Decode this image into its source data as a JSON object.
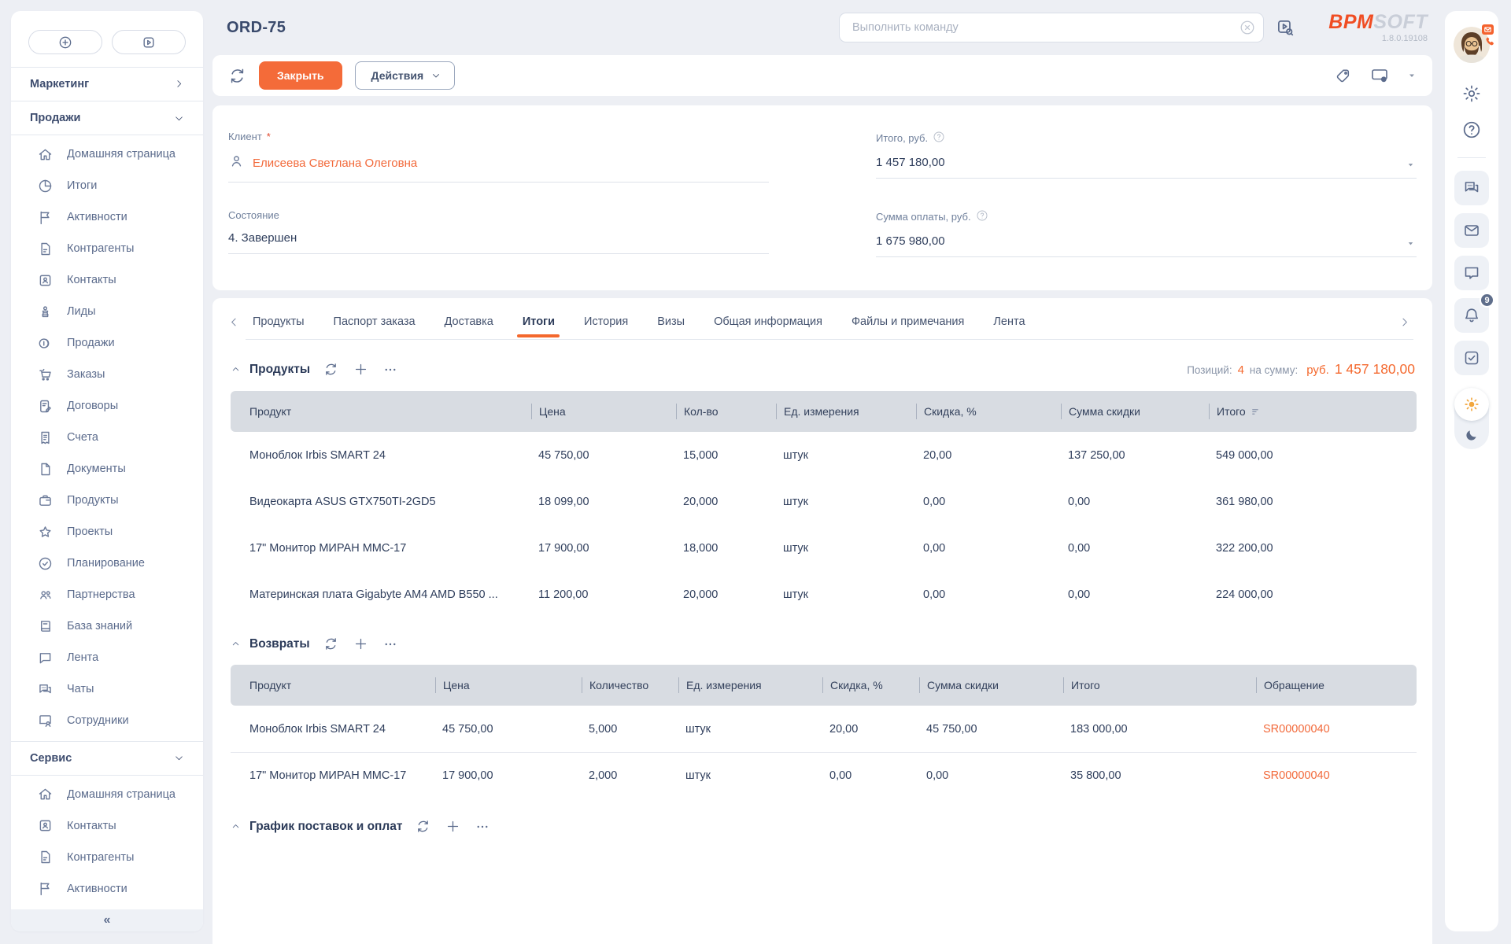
{
  "colors": {
    "accent": "#f4682d",
    "link": "#f2693a",
    "close_button": "#f46b39",
    "logo_orange": "#f04d23",
    "logo_gray": "#c9ced8",
    "table_header_bg": "#d8dce2",
    "badge_bg": "#5f6e8b"
  },
  "header": {
    "record_id": "ORD-75",
    "command_placeholder": "Выполнить команду",
    "logo": {
      "bpm": "BPM",
      "soft": "SOFT",
      "version": "1.8.0.19108"
    }
  },
  "toolbar": {
    "close_label": "Закрыть",
    "actions_label": "Действия"
  },
  "form": {
    "client": {
      "label": "Клиент",
      "required_mark": "*",
      "value": "Елисеева Светлана Олеговна"
    },
    "state": {
      "label": "Состояние",
      "value": "4. Завершен"
    },
    "total": {
      "label": "Итого, руб.",
      "value": "1 457 180,00"
    },
    "payment": {
      "label": "Сумма оплаты, руб.",
      "value": "1 675 980,00"
    }
  },
  "tabs": {
    "items": [
      {
        "label": "Продукты",
        "active": false
      },
      {
        "label": "Паспорт заказа",
        "active": false
      },
      {
        "label": "Доставка",
        "active": false
      },
      {
        "label": "Итоги",
        "active": true
      },
      {
        "label": "История",
        "active": false
      },
      {
        "label": "Визы",
        "active": false
      },
      {
        "label": "Общая информация",
        "active": false
      },
      {
        "label": "Файлы и примечания",
        "active": false
      },
      {
        "label": "Лента",
        "active": false
      }
    ]
  },
  "sidebar": {
    "sections": [
      {
        "label": "Маркетинг",
        "expanded": false,
        "items": []
      },
      {
        "label": "Продажи",
        "expanded": true,
        "items": [
          {
            "icon": "home-icon",
            "label": "Домашняя страница"
          },
          {
            "icon": "pie-icon",
            "label": "Итоги"
          },
          {
            "icon": "flag-icon",
            "label": "Активности"
          },
          {
            "icon": "account-doc-icon",
            "label": "Контрагенты"
          },
          {
            "icon": "contact-card-icon",
            "label": "Контакты"
          },
          {
            "icon": "lead-icon",
            "label": "Лиды"
          },
          {
            "icon": "sales-icon",
            "label": "Продажи"
          },
          {
            "icon": "cart-icon",
            "label": "Заказы"
          },
          {
            "icon": "contract-icon",
            "label": "Договоры"
          },
          {
            "icon": "invoice-icon",
            "label": "Счета"
          },
          {
            "icon": "document-icon",
            "label": "Документы"
          },
          {
            "icon": "product-case-icon",
            "label": "Продукты"
          },
          {
            "icon": "star-icon",
            "label": "Проекты"
          },
          {
            "icon": "planning-icon",
            "label": "Планирование"
          },
          {
            "icon": "partners-icon",
            "label": "Партнерства"
          },
          {
            "icon": "knowledge-icon",
            "label": "База знаний"
          },
          {
            "icon": "feed-icon",
            "label": "Лента"
          },
          {
            "icon": "chats-icon",
            "label": "Чаты"
          },
          {
            "icon": "employees-icon",
            "label": "Сотрудники"
          }
        ]
      },
      {
        "label": "Сервис",
        "expanded": true,
        "items": [
          {
            "icon": "home-icon",
            "label": "Домашняя страница"
          },
          {
            "icon": "contact-card-icon",
            "label": "Контакты"
          },
          {
            "icon": "account-doc-icon",
            "label": "Контрагенты"
          },
          {
            "icon": "flag-icon",
            "label": "Активности"
          }
        ]
      }
    ],
    "collapse_glyph": "«"
  },
  "products_section": {
    "title": "Продукты",
    "stats": {
      "positions_label": "Позиций:",
      "positions_value": "4",
      "sum_label": "на сумму:",
      "currency": "руб.",
      "amount": "1 457 180,00"
    },
    "columns": [
      "Продукт",
      "Цена",
      "Кол-во",
      "Ед. измерения",
      "Скидка, %",
      "Сумма скидки",
      "Итого"
    ],
    "rows": [
      [
        "Моноблок Irbis SMART 24",
        "45 750,00",
        "15,000",
        "штук",
        "20,00",
        "137 250,00",
        "549 000,00"
      ],
      [
        "Видеокарта ASUS GTX750TI-2GD5",
        "18 099,00",
        "20,000",
        "штук",
        "0,00",
        "0,00",
        "361 980,00"
      ],
      [
        "17\" Монитор МИРАН ММС-17",
        "17 900,00",
        "18,000",
        "штук",
        "0,00",
        "0,00",
        "322 200,00"
      ],
      [
        "Материнская плата Gigabyte AM4 AMD B550 ...",
        "11 200,00",
        "20,000",
        "штук",
        "0,00",
        "0,00",
        "224 000,00"
      ]
    ]
  },
  "returns_section": {
    "title": "Возвраты",
    "columns": [
      "Продукт",
      "Цена",
      "Количество",
      "Ед. измерения",
      "Скидка, %",
      "Сумма скидки",
      "Итого",
      "Обращение"
    ],
    "rows": [
      [
        "Моноблок Irbis SMART 24",
        "45 750,00",
        "5,000",
        "штук",
        "20,00",
        "45 750,00",
        "183 000,00",
        "SR00000040"
      ],
      [
        "17\" Монитор МИРАН ММС-17",
        "17 900,00",
        "2,000",
        "штук",
        "0,00",
        "0,00",
        "35 800,00",
        "SR00000040"
      ]
    ]
  },
  "schedule_section": {
    "title": "График поставок и оплат"
  },
  "right_rail": {
    "notification_count": "9"
  }
}
